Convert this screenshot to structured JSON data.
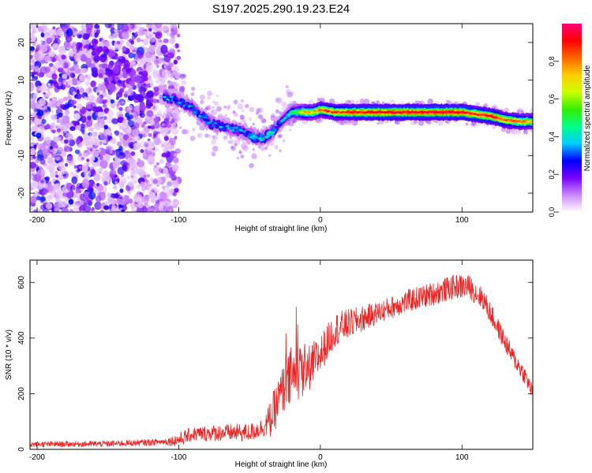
{
  "title": "S197.2025.290.19.23.E24",
  "colorbar": {
    "label": "Normalized spectral amplitude",
    "range": [
      0,
      1
    ],
    "ticks": [
      0.0,
      0.2,
      0.4,
      0.6,
      0.8
    ],
    "tick_labels": [
      "0.0",
      "0.2",
      "0.4",
      "0.6",
      "0.8"
    ],
    "colormap": [
      "#ffffff",
      "#cc88ff",
      "#7700ff",
      "#0000ff",
      "#00ccff",
      "#00ff88",
      "#33ee00",
      "#ccff00",
      "#ffcc00",
      "#ff6600",
      "#ff0000",
      "#ff0077"
    ]
  },
  "chart_data": [
    {
      "type": "heatmap",
      "xlabel": "Height of straight line (km)",
      "ylabel": "Frequency (Hz)",
      "xlim": [
        -205,
        150
      ],
      "ylim": [
        -25,
        25
      ],
      "x_ticks": [
        -200,
        -100,
        0,
        100
      ],
      "x_tick_labels": [
        "-200",
        "-100",
        "0",
        "100"
      ],
      "y_ticks": [
        -20,
        -10,
        0,
        10,
        20
      ],
      "y_tick_labels": [
        "-20",
        "-10",
        "0",
        "10",
        "20"
      ],
      "ridge": {
        "x": [
          -108,
          -100,
          -92,
          -85,
          -78,
          -70,
          -62,
          -55,
          -48,
          -42,
          -36,
          -30,
          -25,
          -20,
          -15,
          -10,
          -5,
          0,
          10,
          20,
          40,
          60,
          80,
          100,
          110,
          120,
          130,
          140,
          150
        ],
        "y": [
          5.5,
          4.5,
          3,
          1,
          -1.5,
          -2,
          -3,
          -3.5,
          -5,
          -5.5,
          -4.5,
          -2,
          0,
          1.5,
          1.5,
          1.5,
          1.5,
          2.2,
          1.5,
          1.5,
          1.5,
          1.5,
          1.5,
          1.5,
          1,
          0.5,
          -0.5,
          -1,
          -1
        ],
        "amplitude": [
          0.35,
          0.3,
          0.35,
          0.3,
          0.35,
          0.3,
          0.3,
          0.3,
          0.35,
          0.35,
          0.4,
          0.3,
          0.35,
          0.45,
          0.6,
          0.75,
          0.7,
          0.8,
          0.85,
          0.9,
          0.95,
          0.95,
          0.95,
          0.95,
          0.9,
          0.9,
          0.85,
          0.8,
          0.75
        ]
      },
      "noise_region": {
        "x": [
          -205,
          -100
        ],
        "y": [
          -25,
          25
        ],
        "amplitude_max": 0.25
      }
    },
    {
      "type": "line",
      "xlabel": "Height of straight line (km)",
      "ylabel": "SNR (10 * v/v)",
      "xlim": [
        -205,
        150
      ],
      "ylim": [
        0,
        680
      ],
      "x_ticks": [
        -200,
        -100,
        0,
        100
      ],
      "x_tick_labels": [
        "-200",
        "-100",
        "0",
        "100"
      ],
      "y_ticks": [
        0,
        200,
        400,
        600
      ],
      "y_tick_labels": [
        "0",
        "200",
        "400",
        "600"
      ],
      "color": "#ee2222",
      "envelope": {
        "x": [
          -205,
          -150,
          -120,
          -105,
          -100,
          -90,
          -70,
          -50,
          -40,
          -35,
          -25,
          -15,
          -10,
          0,
          10,
          20,
          40,
          60,
          80,
          95,
          105,
          115,
          125,
          135,
          145,
          150
        ],
        "y": [
          18,
          20,
          25,
          30,
          35,
          55,
          60,
          60,
          80,
          110,
          230,
          280,
          280,
          340,
          430,
          450,
          490,
          530,
          560,
          585,
          585,
          540,
          440,
          340,
          260,
          200
        ]
      },
      "noise_amplitude": {
        "x": [
          -205,
          -110,
          -100,
          -40,
          -35,
          -20,
          0,
          40,
          100,
          150
        ],
        "y": [
          10,
          12,
          25,
          35,
          70,
          110,
          70,
          40,
          45,
          30
        ]
      }
    }
  ]
}
